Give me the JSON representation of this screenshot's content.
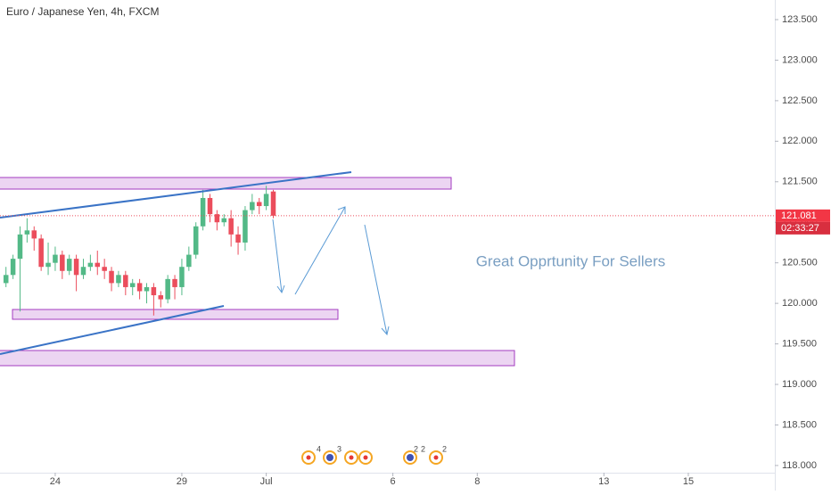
{
  "chart_data": {
    "type": "candlestick",
    "title": "Euro / Japanese Yen, 4h, FXCM",
    "annotation": "Great Opprtunity For Sellers",
    "last_price": 121.081,
    "countdown": "02:33:27",
    "event_counts": [
      4,
      3,
      2,
      2,
      2
    ],
    "up_color": "#53b987",
    "down_color": "#eb4d5c",
    "x": [
      -7,
      -6,
      -5,
      -4,
      -3,
      -2,
      -1,
      0,
      1,
      2,
      3,
      4,
      5,
      6,
      7,
      8,
      9,
      10,
      11,
      12,
      13,
      14,
      15,
      16,
      17,
      18,
      19,
      20,
      21,
      22,
      23,
      24,
      25,
      26,
      27,
      28,
      29,
      30,
      31
    ],
    "open": [
      120.25,
      120.35,
      120.55,
      120.85,
      120.9,
      120.8,
      120.45,
      120.5,
      120.6,
      120.4,
      120.55,
      120.35,
      120.45,
      120.5,
      120.45,
      120.4,
      120.25,
      120.35,
      120.2,
      120.25,
      120.15,
      120.2,
      120.1,
      120.05,
      120.3,
      120.2,
      120.45,
      120.6,
      120.95,
      121.3,
      121.1,
      121.0,
      121.05,
      120.85,
      120.75,
      121.15,
      121.25,
      121.2,
      121.38
    ],
    "high": [
      120.45,
      120.6,
      120.95,
      121.05,
      120.95,
      120.85,
      120.75,
      120.7,
      120.65,
      120.6,
      120.6,
      120.55,
      120.6,
      120.65,
      120.55,
      120.45,
      120.4,
      120.4,
      120.3,
      120.3,
      120.25,
      120.25,
      120.15,
      120.35,
      120.35,
      120.55,
      120.7,
      121.0,
      121.4,
      121.35,
      121.15,
      121.1,
      121.15,
      120.95,
      121.2,
      121.35,
      121.3,
      121.45,
      121.4
    ],
    "low": [
      120.2,
      120.3,
      119.9,
      120.75,
      120.65,
      120.4,
      120.35,
      120.4,
      120.3,
      120.35,
      120.15,
      120.3,
      120.4,
      120.35,
      120.3,
      120.15,
      120.2,
      120.1,
      120.1,
      120.05,
      120.0,
      119.85,
      119.95,
      120.0,
      120.05,
      120.1,
      120.4,
      120.55,
      120.9,
      121.0,
      120.9,
      120.95,
      120.7,
      120.6,
      120.65,
      121.1,
      121.1,
      121.15,
      121.05
    ],
    "close": [
      120.35,
      120.55,
      120.85,
      120.9,
      120.8,
      120.45,
      120.5,
      120.6,
      120.4,
      120.55,
      120.35,
      120.45,
      120.5,
      120.45,
      120.4,
      120.25,
      120.35,
      120.2,
      120.25,
      120.15,
      120.2,
      120.1,
      120.05,
      120.3,
      120.2,
      120.45,
      120.6,
      120.95,
      121.3,
      121.1,
      121.0,
      121.05,
      120.85,
      120.75,
      121.15,
      121.25,
      121.2,
      121.35,
      121.081
    ],
    "xlim": [
      -7.85,
      102.3
    ],
    "xticks": [
      {
        "value": 0,
        "label": "24"
      },
      {
        "value": 18,
        "label": "29"
      },
      {
        "value": 30,
        "label": "Jul"
      },
      {
        "value": 48,
        "label": "6"
      },
      {
        "value": 60,
        "label": "8"
      },
      {
        "value": 78,
        "label": "13"
      },
      {
        "value": 90,
        "label": "15"
      }
    ],
    "ylim": [
      117.911,
      123.742
    ],
    "yticks": [
      {
        "value": 118,
        "label": "118.000"
      },
      {
        "value": 118.5,
        "label": "118.500"
      },
      {
        "value": 119,
        "label": "119.000"
      },
      {
        "value": 119.5,
        "label": "119.500"
      },
      {
        "value": 120,
        "label": "120.000"
      },
      {
        "value": 120.5,
        "label": "120.500"
      },
      {
        "value": 121,
        "label": "121.000"
      },
      {
        "value": 121.5,
        "label": "121.500"
      },
      {
        "value": 122,
        "label": "122.000"
      },
      {
        "value": 122.5,
        "label": "122.500"
      },
      {
        "value": 123,
        "label": "123.000"
      },
      {
        "value": 123.5,
        "label": "123.500"
      }
    ]
  }
}
